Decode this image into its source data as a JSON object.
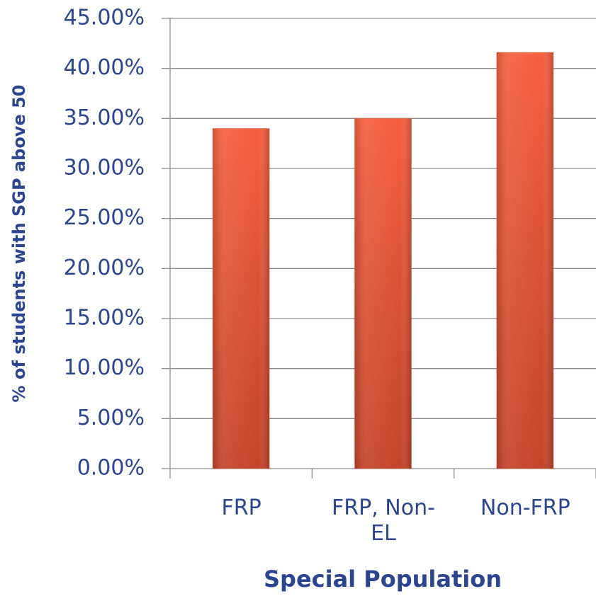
{
  "chart_data": {
    "type": "bar",
    "x_label": "Special Population",
    "y_label": "% of students with SGP above 50",
    "categories": [
      "FRP",
      "FRP, Non-EL",
      "Non-FRP"
    ],
    "values": [
      34.0,
      35.0,
      41.6
    ],
    "color": "#ea5436",
    "ylim": [
      0,
      45
    ],
    "yticks": [
      {
        "value": 0,
        "label": "0.00%"
      },
      {
        "value": 5,
        "label": "5.00%"
      },
      {
        "value": 10,
        "label": "10.00%"
      },
      {
        "value": 15,
        "label": "15.00%"
      },
      {
        "value": 20,
        "label": "20.00%"
      },
      {
        "value": 25,
        "label": "25.00%"
      },
      {
        "value": 30,
        "label": "30.00%"
      },
      {
        "value": 35,
        "label": "35.00%"
      },
      {
        "value": 40,
        "label": "40.00%"
      },
      {
        "value": 45,
        "label": "45.00%"
      }
    ],
    "grid": true
  }
}
